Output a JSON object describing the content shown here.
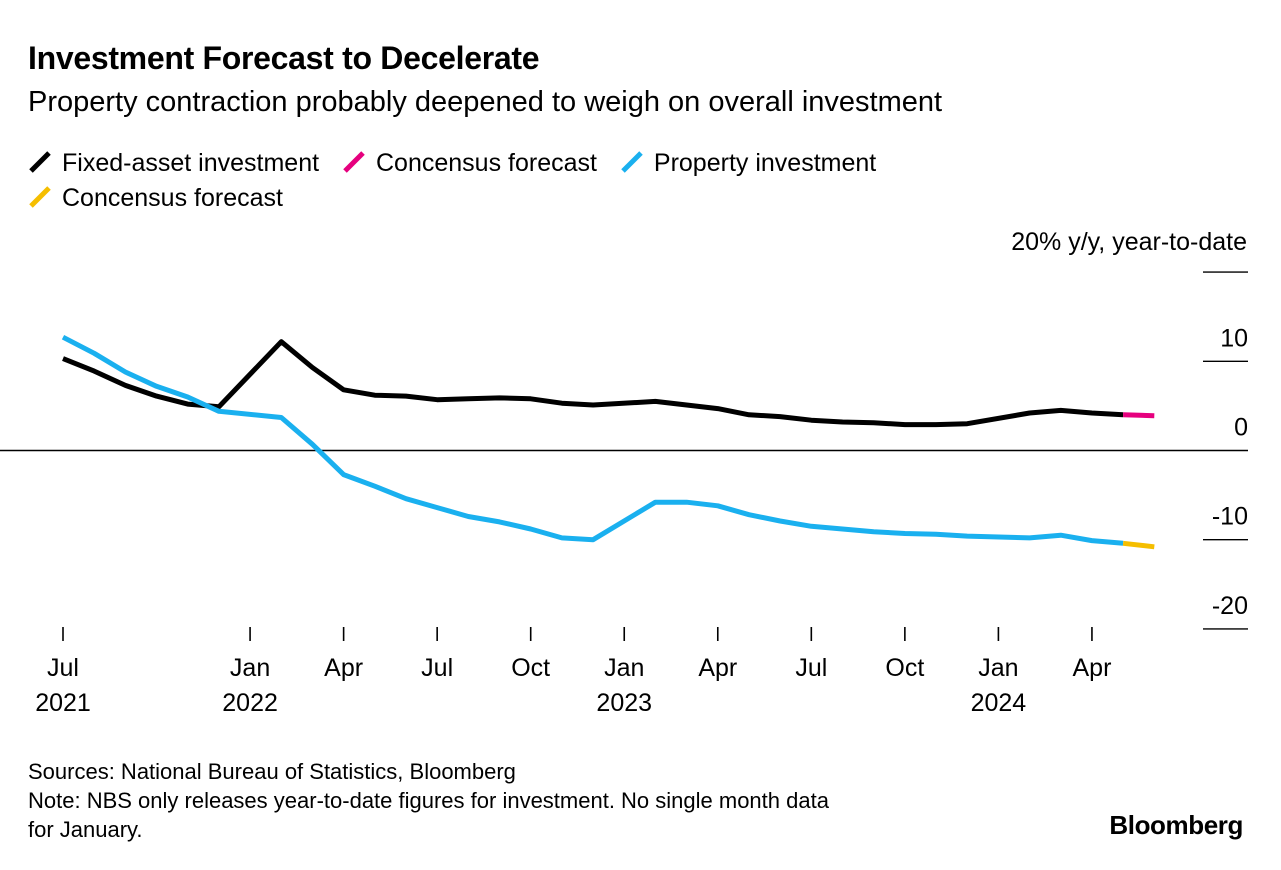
{
  "title": "Investment Forecast to Decelerate",
  "subtitle": "Property contraction probably deepened to weigh on overall investment",
  "unit_label": "20% y/y, year-to-date",
  "legend": [
    {
      "label": "Fixed-asset investment",
      "color": "#000000"
    },
    {
      "label": "Concensus forecast",
      "color": "#e6007e"
    },
    {
      "label": "Property investment",
      "color": "#1ab0ef"
    },
    {
      "label": "Concensus forecast",
      "color": "#f5be00"
    }
  ],
  "footer": {
    "sources": "Sources: National Bureau of Statistics, Bloomberg",
    "note_line1": "Note: NBS only releases year-to-date figures for investment. No single month data",
    "note_line2": "for January."
  },
  "brand": "Bloomberg",
  "chart_data": {
    "type": "line",
    "title": "Investment Forecast to Decelerate",
    "ylabel": "% y/y, year-to-date",
    "ylim": [
      -20,
      20
    ],
    "yticks": [
      {
        "value": 10,
        "label": "10"
      },
      {
        "value": 0,
        "label": "0"
      },
      {
        "value": -10,
        "label": "-10"
      },
      {
        "value": -20,
        "label": "-20"
      }
    ],
    "x_start": "2021-07",
    "x_end": "2024-07",
    "xticks": [
      {
        "month": 0,
        "label": "Jul",
        "year": "2021"
      },
      {
        "month": 6,
        "label": "Jan",
        "year": "2022"
      },
      {
        "month": 9,
        "label": "Apr",
        "year": ""
      },
      {
        "month": 12,
        "label": "Jul",
        "year": ""
      },
      {
        "month": 15,
        "label": "Oct",
        "year": ""
      },
      {
        "month": 18,
        "label": "Jan",
        "year": "2023"
      },
      {
        "month": 21,
        "label": "Apr",
        "year": ""
      },
      {
        "month": 24,
        "label": "Jul",
        "year": ""
      },
      {
        "month": 27,
        "label": "Oct",
        "year": ""
      },
      {
        "month": 30,
        "label": "Jan",
        "year": "2024"
      },
      {
        "month": 33,
        "label": "Apr",
        "year": ""
      }
    ],
    "series": [
      {
        "name": "Fixed-asset investment",
        "color": "#000000",
        "points": [
          [
            0,
            10.3
          ],
          [
            1,
            8.9
          ],
          [
            2,
            7.3
          ],
          [
            3,
            6.1
          ],
          [
            4,
            5.2
          ],
          [
            5,
            4.9
          ],
          [
            7,
            12.2
          ],
          [
            8,
            9.3
          ],
          [
            9,
            6.8
          ],
          [
            10,
            6.2
          ],
          [
            11,
            6.1
          ],
          [
            12,
            5.7
          ],
          [
            13,
            5.8
          ],
          [
            14,
            5.9
          ],
          [
            15,
            5.8
          ],
          [
            16,
            5.3
          ],
          [
            17,
            5.1
          ],
          [
            19,
            5.5
          ],
          [
            20,
            5.1
          ],
          [
            21,
            4.7
          ],
          [
            22,
            4.0
          ],
          [
            23,
            3.8
          ],
          [
            24,
            3.4
          ],
          [
            25,
            3.2
          ],
          [
            26,
            3.1
          ],
          [
            27,
            2.9
          ],
          [
            28,
            2.9
          ],
          [
            29,
            3.0
          ],
          [
            31,
            4.2
          ],
          [
            32,
            4.5
          ],
          [
            33,
            4.2
          ],
          [
            34,
            4.0
          ]
        ]
      },
      {
        "name": "Concensus forecast",
        "color": "#e6007e",
        "points": [
          [
            34,
            4.0
          ],
          [
            35,
            3.9
          ]
        ]
      },
      {
        "name": "Property investment",
        "color": "#1ab0ef",
        "points": [
          [
            0,
            12.7
          ],
          [
            1,
            10.9
          ],
          [
            2,
            8.8
          ],
          [
            3,
            7.2
          ],
          [
            4,
            6.0
          ],
          [
            5,
            4.4
          ],
          [
            7,
            3.7
          ],
          [
            8,
            0.7
          ],
          [
            9,
            -2.7
          ],
          [
            10,
            -4.0
          ],
          [
            11,
            -5.4
          ],
          [
            12,
            -6.4
          ],
          [
            13,
            -7.4
          ],
          [
            14,
            -8.0
          ],
          [
            15,
            -8.8
          ],
          [
            16,
            -9.8
          ],
          [
            17,
            -10.0
          ],
          [
            19,
            -5.8
          ],
          [
            20,
            -5.8
          ],
          [
            21,
            -6.2
          ],
          [
            22,
            -7.2
          ],
          [
            23,
            -7.9
          ],
          [
            24,
            -8.5
          ],
          [
            25,
            -8.8
          ],
          [
            26,
            -9.1
          ],
          [
            27,
            -9.3
          ],
          [
            28,
            -9.4
          ],
          [
            29,
            -9.6
          ],
          [
            31,
            -9.8
          ],
          [
            32,
            -9.5
          ],
          [
            33,
            -10.1
          ],
          [
            34,
            -10.4
          ]
        ]
      },
      {
        "name": "Concensus forecast",
        "color": "#f5be00",
        "points": [
          [
            34,
            -10.4
          ],
          [
            35,
            -10.8
          ]
        ]
      }
    ]
  }
}
